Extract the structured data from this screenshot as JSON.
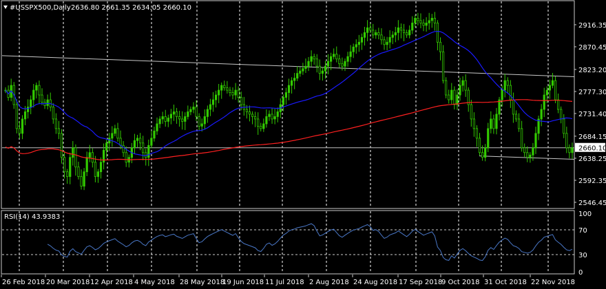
{
  "header": {
    "menu_icon": "triangle-down-icon",
    "symbol": "#USSPX500,Daily",
    "ohlc": "2636.80 2661.35 2634.05 2660.10"
  },
  "rsi_header": "RSI(14) 43.9383",
  "colors": {
    "background": "#000000",
    "bull_candle": "#33cc00",
    "bear_candle": "#d7ffcc",
    "ma_fast": "#1a1aff",
    "ma_slow": "#ff2020",
    "trendline": "#c8c8c8",
    "rsi_line": "#4a78c8",
    "grid": "#ffffff",
    "frame": "#cccccc"
  },
  "chart_data": {
    "type": "candlestick",
    "symbol": "#USSPX500",
    "timeframe": "Daily",
    "last_close": 2660.1,
    "ylim": [
      2535,
      2965
    ],
    "price_ticks": [
      "2916.35",
      "2870.45",
      "2823.20",
      "2777.30",
      "2731.40",
      "2684.15",
      "2638.25",
      "2592.35",
      "2546.45"
    ],
    "price_tick_values": [
      2916.35,
      2870.45,
      2823.2,
      2777.3,
      2731.4,
      2684.15,
      2638.25,
      2592.35,
      2546.45
    ],
    "current_price_label": "2660.10",
    "date_ticks": [
      "26 Feb 2018",
      "20 Mar 2018",
      "12 Apr 2018",
      "4 May 2018",
      "28 May 2018",
      "19 Jun 2018",
      "11 Jul 2018",
      "2 Aug 2018",
      "24 Aug 2018",
      "17 Sep 2018",
      "9 Oct 2018",
      "31 Oct 2018",
      "22 Nov 2018"
    ],
    "closes": [
      2780,
      2765,
      2790,
      2750,
      2700,
      2690,
      2720,
      2735,
      2745,
      2760,
      2780,
      2790,
      2770,
      2755,
      2748,
      2760,
      2745,
      2720,
      2700,
      2690,
      2640,
      2610,
      2600,
      2640,
      2660,
      2620,
      2600,
      2580,
      2610,
      2640,
      2650,
      2630,
      2600,
      2610,
      2630,
      2655,
      2670,
      2680,
      2690,
      2700,
      2680,
      2665,
      2650,
      2630,
      2640,
      2660,
      2675,
      2680,
      2670,
      2650,
      2640,
      2665,
      2680,
      2695,
      2710,
      2720,
      2725,
      2715,
      2722,
      2730,
      2735,
      2725,
      2720,
      2715,
      2725,
      2735,
      2740,
      2745,
      2725,
      2705,
      2710,
      2725,
      2740,
      2750,
      2760,
      2770,
      2780,
      2790,
      2785,
      2780,
      2775,
      2770,
      2780,
      2765,
      2750,
      2740,
      2735,
      2730,
      2725,
      2720,
      2705,
      2700,
      2710,
      2725,
      2730,
      2720,
      2725,
      2735,
      2750,
      2765,
      2775,
      2790,
      2800,
      2805,
      2815,
      2820,
      2825,
      2830,
      2840,
      2850,
      2845,
      2830,
      2815,
      2820,
      2830,
      2840,
      2850,
      2855,
      2845,
      2835,
      2830,
      2840,
      2850,
      2860,
      2870,
      2875,
      2880,
      2890,
      2900,
      2910,
      2905,
      2895,
      2900,
      2895,
      2885,
      2875,
      2880,
      2890,
      2895,
      2900,
      2910,
      2905,
      2900,
      2895,
      2905,
      2920,
      2930,
      2925,
      2920,
      2915,
      2920,
      2925,
      2930,
      2920,
      2880,
      2860,
      2800,
      2770,
      2760,
      2780,
      2750,
      2770,
      2790,
      2800,
      2780,
      2750,
      2720,
      2700,
      2680,
      2650,
      2640,
      2660,
      2700,
      2720,
      2700,
      2730,
      2760,
      2780,
      2800,
      2790,
      2760,
      2730,
      2720,
      2700,
      2660,
      2650,
      2640,
      2645,
      2660,
      2690,
      2720,
      2740,
      2770,
      2780,
      2790,
      2800,
      2760,
      2740,
      2720,
      2690,
      2660,
      2650,
      2660
    ],
    "rsi": {
      "label": "RSI(14)",
      "last_value": 43.9383,
      "ylim": [
        0,
        100
      ],
      "levels": [
        70,
        30
      ],
      "tick_labels": [
        "100",
        "70",
        "30",
        "0"
      ],
      "tick_values": [
        100,
        70,
        30,
        0
      ]
    }
  }
}
